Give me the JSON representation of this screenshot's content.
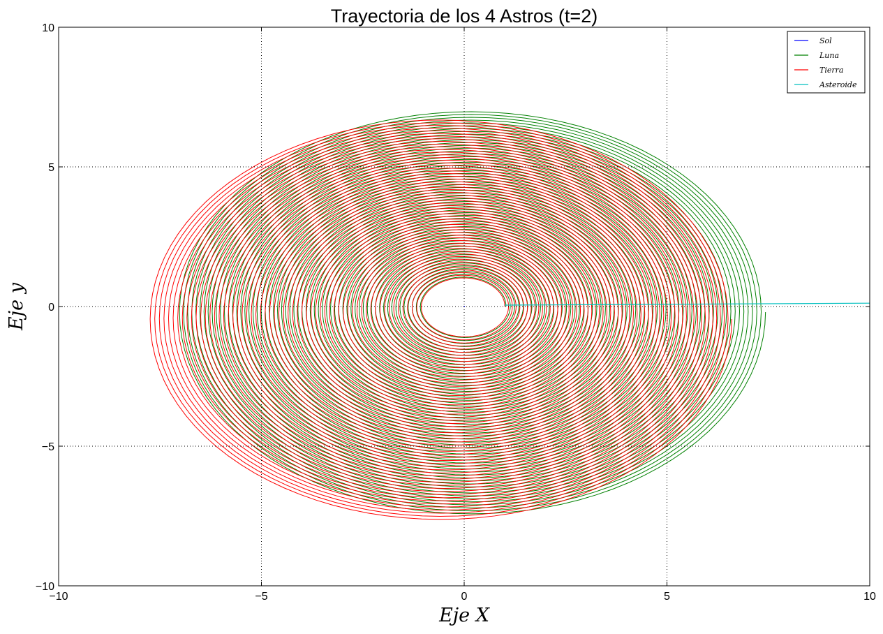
{
  "chart_data": {
    "type": "line",
    "title": "Trayectoria de los 4 Astros (t=2)",
    "xlabel": "Eje X",
    "ylabel": "Eje y",
    "xlim": [
      -10,
      10
    ],
    "ylim": [
      -10,
      10
    ],
    "xticks": [
      -10,
      -5,
      0,
      5,
      10
    ],
    "yticks": [
      -10,
      -5,
      0,
      5,
      10
    ],
    "grid": true,
    "legend_position": "top-right",
    "series": [
      {
        "name": "Sol",
        "color": "#0000ff",
        "shape": "point",
        "center": [
          0,
          0
        ]
      },
      {
        "name": "Luna",
        "color": "#008000",
        "shape": "spiral",
        "center_start": [
          0,
          0
        ],
        "center_end": [
          0.18,
          -0.2
        ],
        "r_start": 1.03,
        "r_end": 7.25,
        "turns": 60
      },
      {
        "name": "Tierra",
        "color": "#ff0000",
        "shape": "spiral",
        "center_start": [
          0,
          0
        ],
        "center_end": [
          -0.6,
          -0.45
        ],
        "r_start": 1.0,
        "r_end": 7.2,
        "turns": 60
      },
      {
        "name": "Asteroide",
        "color": "#00bfbf",
        "shape": "line",
        "x": [
          1.0,
          10.0
        ],
        "y": [
          0.05,
          0.12
        ]
      }
    ]
  }
}
